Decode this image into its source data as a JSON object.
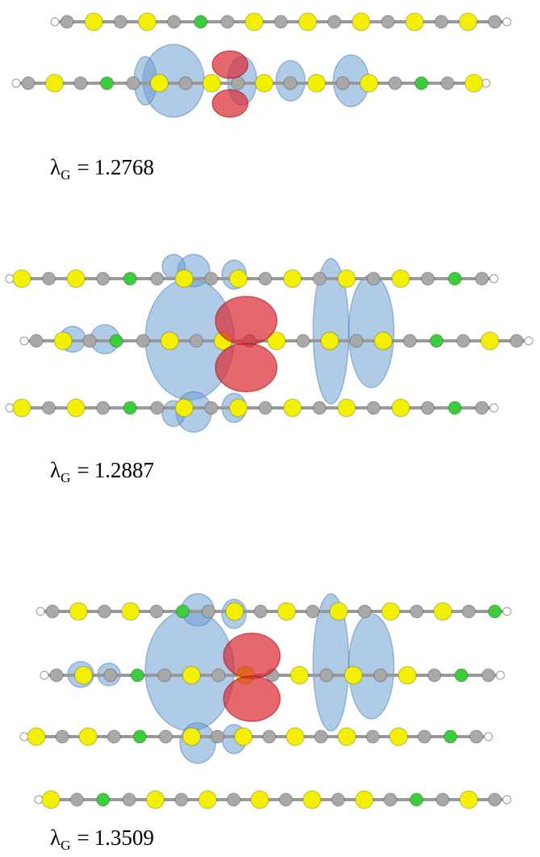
{
  "panels": [
    {
      "label": {
        "symbol": "λ",
        "subscript": "G",
        "relation": "=",
        "value": "1.2768"
      }
    },
    {
      "label": {
        "symbol": "λ",
        "subscript": "G",
        "relation": "=",
        "value": "1.2887"
      }
    },
    {
      "label": {
        "symbol": "λ",
        "subscript": "G",
        "relation": "=",
        "value": "1.3509"
      }
    }
  ]
}
